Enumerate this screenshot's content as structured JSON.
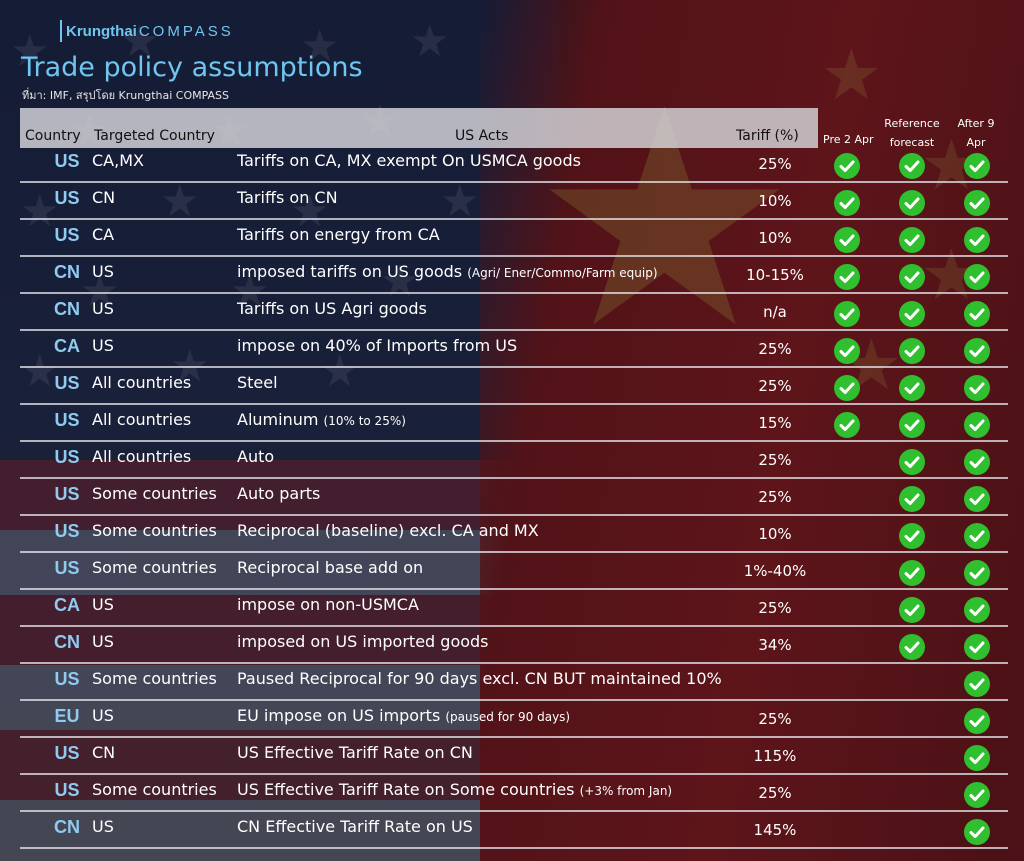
{
  "logo": {
    "brand": "Krungthai",
    "product": "COMPASS"
  },
  "title": "Trade policy assumptions",
  "source": "ที่มา: IMF, สรุปโดย Krungthai COMPASS",
  "headers": {
    "country": "Country",
    "targeted": "Targeted Country",
    "acts": "US Acts",
    "tariff": "Tariff (%)",
    "pre": "Pre 2 Apr",
    "reference": "Reference forecast",
    "after": "After 9 Apr"
  },
  "colors": {
    "accent": "#6fc6f0",
    "check": "#2fbf2f",
    "header_bg": "#d7d7dc"
  },
  "rows": [
    {
      "country": "US",
      "target": "CA,MX",
      "act": "Tariffs on  CA,  MX exempt On USMCA goods",
      "note": "",
      "tariff": "25%",
      "pre": true,
      "ref": true,
      "after": true
    },
    {
      "country": "US",
      "target": "CN",
      "act": "Tariffs on CN",
      "note": "",
      "tariff": "10%",
      "pre": true,
      "ref": true,
      "after": true
    },
    {
      "country": "US",
      "target": "CA",
      "act": "Tariffs on energy from CA",
      "note": "",
      "tariff": "10%",
      "pre": true,
      "ref": true,
      "after": true
    },
    {
      "country": "CN",
      "target": "US",
      "act": "imposed tariffs on US goods",
      "note": "(Agri/ Ener/Commo/Farm equip)",
      "tariff": "10-15%",
      "pre": true,
      "ref": true,
      "after": true
    },
    {
      "country": "CN",
      "target": "US",
      "act": "Tariffs on US Agri goods",
      "note": "",
      "tariff": "n/a",
      "pre": true,
      "ref": true,
      "after": true
    },
    {
      "country": "CA",
      "target": "US",
      "act": "impose on 40% of Imports  from US",
      "note": "",
      "tariff": "25%",
      "pre": true,
      "ref": true,
      "after": true
    },
    {
      "country": "US",
      "target": "All countries",
      "act": "Steel",
      "note": "",
      "tariff": "25%",
      "pre": true,
      "ref": true,
      "after": true
    },
    {
      "country": "US",
      "target": "All countries",
      "act": "Aluminum",
      "note": "(10% to 25%)",
      "tariff": "15%",
      "pre": true,
      "ref": true,
      "after": true
    },
    {
      "country": "US",
      "target": "All countries",
      "act": "Auto",
      "note": "",
      "tariff": "25%",
      "pre": false,
      "ref": true,
      "after": true
    },
    {
      "country": "US",
      "target": "Some countries",
      "act": "Auto parts",
      "note": "",
      "tariff": "25%",
      "pre": false,
      "ref": true,
      "after": true
    },
    {
      "country": "US",
      "target": "Some countries",
      "act": "Reciprocal (baseline) excl.  CA and MX",
      "note": "",
      "tariff": "10%",
      "pre": false,
      "ref": true,
      "after": true
    },
    {
      "country": "US",
      "target": "Some countries",
      "act": "Reciprocal base  add on",
      "note": "",
      "tariff": "1%-40%",
      "pre": false,
      "ref": true,
      "after": true
    },
    {
      "country": "CA",
      "target": "US",
      "act": "impose on non-USMCA",
      "note": "",
      "tariff": "25%",
      "pre": false,
      "ref": true,
      "after": true
    },
    {
      "country": "CN",
      "target": "US",
      "act": "imposed on US imported goods",
      "note": "",
      "tariff": "34%",
      "pre": false,
      "ref": true,
      "after": true
    },
    {
      "country": "US",
      "target": "Some countries",
      "act": "Paused Reciprocal for 90 days excl. CN BUT maintained 10%",
      "note": "",
      "tariff": "",
      "pre": false,
      "ref": false,
      "after": true
    },
    {
      "country": "EU",
      "target": "US",
      "act": "EU impose on US imports",
      "note": "(paused for 90 days)",
      "tariff": "25%",
      "pre": false,
      "ref": false,
      "after": true
    },
    {
      "country": "US",
      "target": "CN",
      "act": "US Effective Tariff Rate on CN",
      "note": "",
      "tariff": "115%",
      "pre": false,
      "ref": false,
      "after": true
    },
    {
      "country": "US",
      "target": "Some countries",
      "act": "US Effective Tariff Rate on Some countries",
      "note": "(+3% from Jan)",
      "tariff": "25%",
      "pre": false,
      "ref": false,
      "after": true
    },
    {
      "country": "CN",
      "target": "US",
      "act": "CN Effective Tariff Rate on US",
      "note": "",
      "tariff": "145%",
      "pre": false,
      "ref": false,
      "after": true
    }
  ]
}
